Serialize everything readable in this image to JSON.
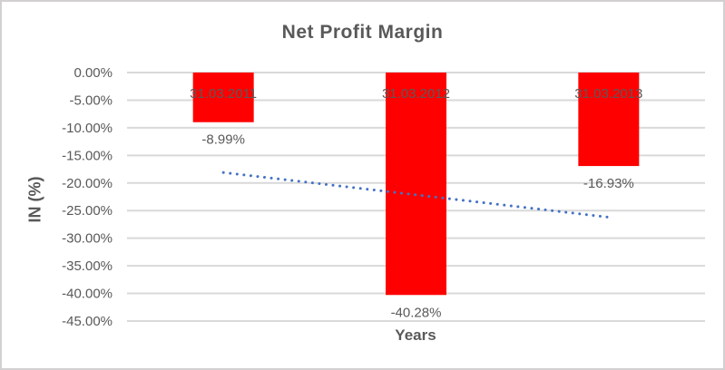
{
  "window": {
    "background_color": "#FFFFFF",
    "border_color": "#D2D0D0"
  },
  "chart_data": {
    "type": "bar",
    "title": "Net Profit Margin",
    "xlabel": "Years",
    "ylabel": "IN (%)",
    "categories": [
      "31.03.2011",
      "31.03.2012",
      "31.03.2013"
    ],
    "series": [
      {
        "name": "Net Profit Margin",
        "values": [
          -8.99,
          -40.28,
          -16.93
        ]
      }
    ],
    "data_labels": [
      "-8.99%",
      "-40.28%",
      "-16.93%"
    ],
    "y_ticks": [
      "0.00%",
      "-5.00%",
      "-10.00%",
      "-15.00%",
      "-20.00%",
      "-25.00%",
      "-30.00%",
      "-35.00%",
      "-40.00%",
      "-45.00%"
    ],
    "y_tick_values": [
      0,
      -5,
      -10,
      -15,
      -20,
      -25,
      -30,
      -35,
      -40,
      -45
    ],
    "ylim": [
      0,
      -45
    ],
    "grid": true,
    "legend": "none",
    "bar_color": "#FF0000",
    "text_color": "#595959",
    "gridline_color": "#D9D9D9",
    "trendline": {
      "type": "linear",
      "style": "dotted",
      "color": "#4472C4",
      "start_value": -18.1,
      "end_value": -26.2
    }
  }
}
